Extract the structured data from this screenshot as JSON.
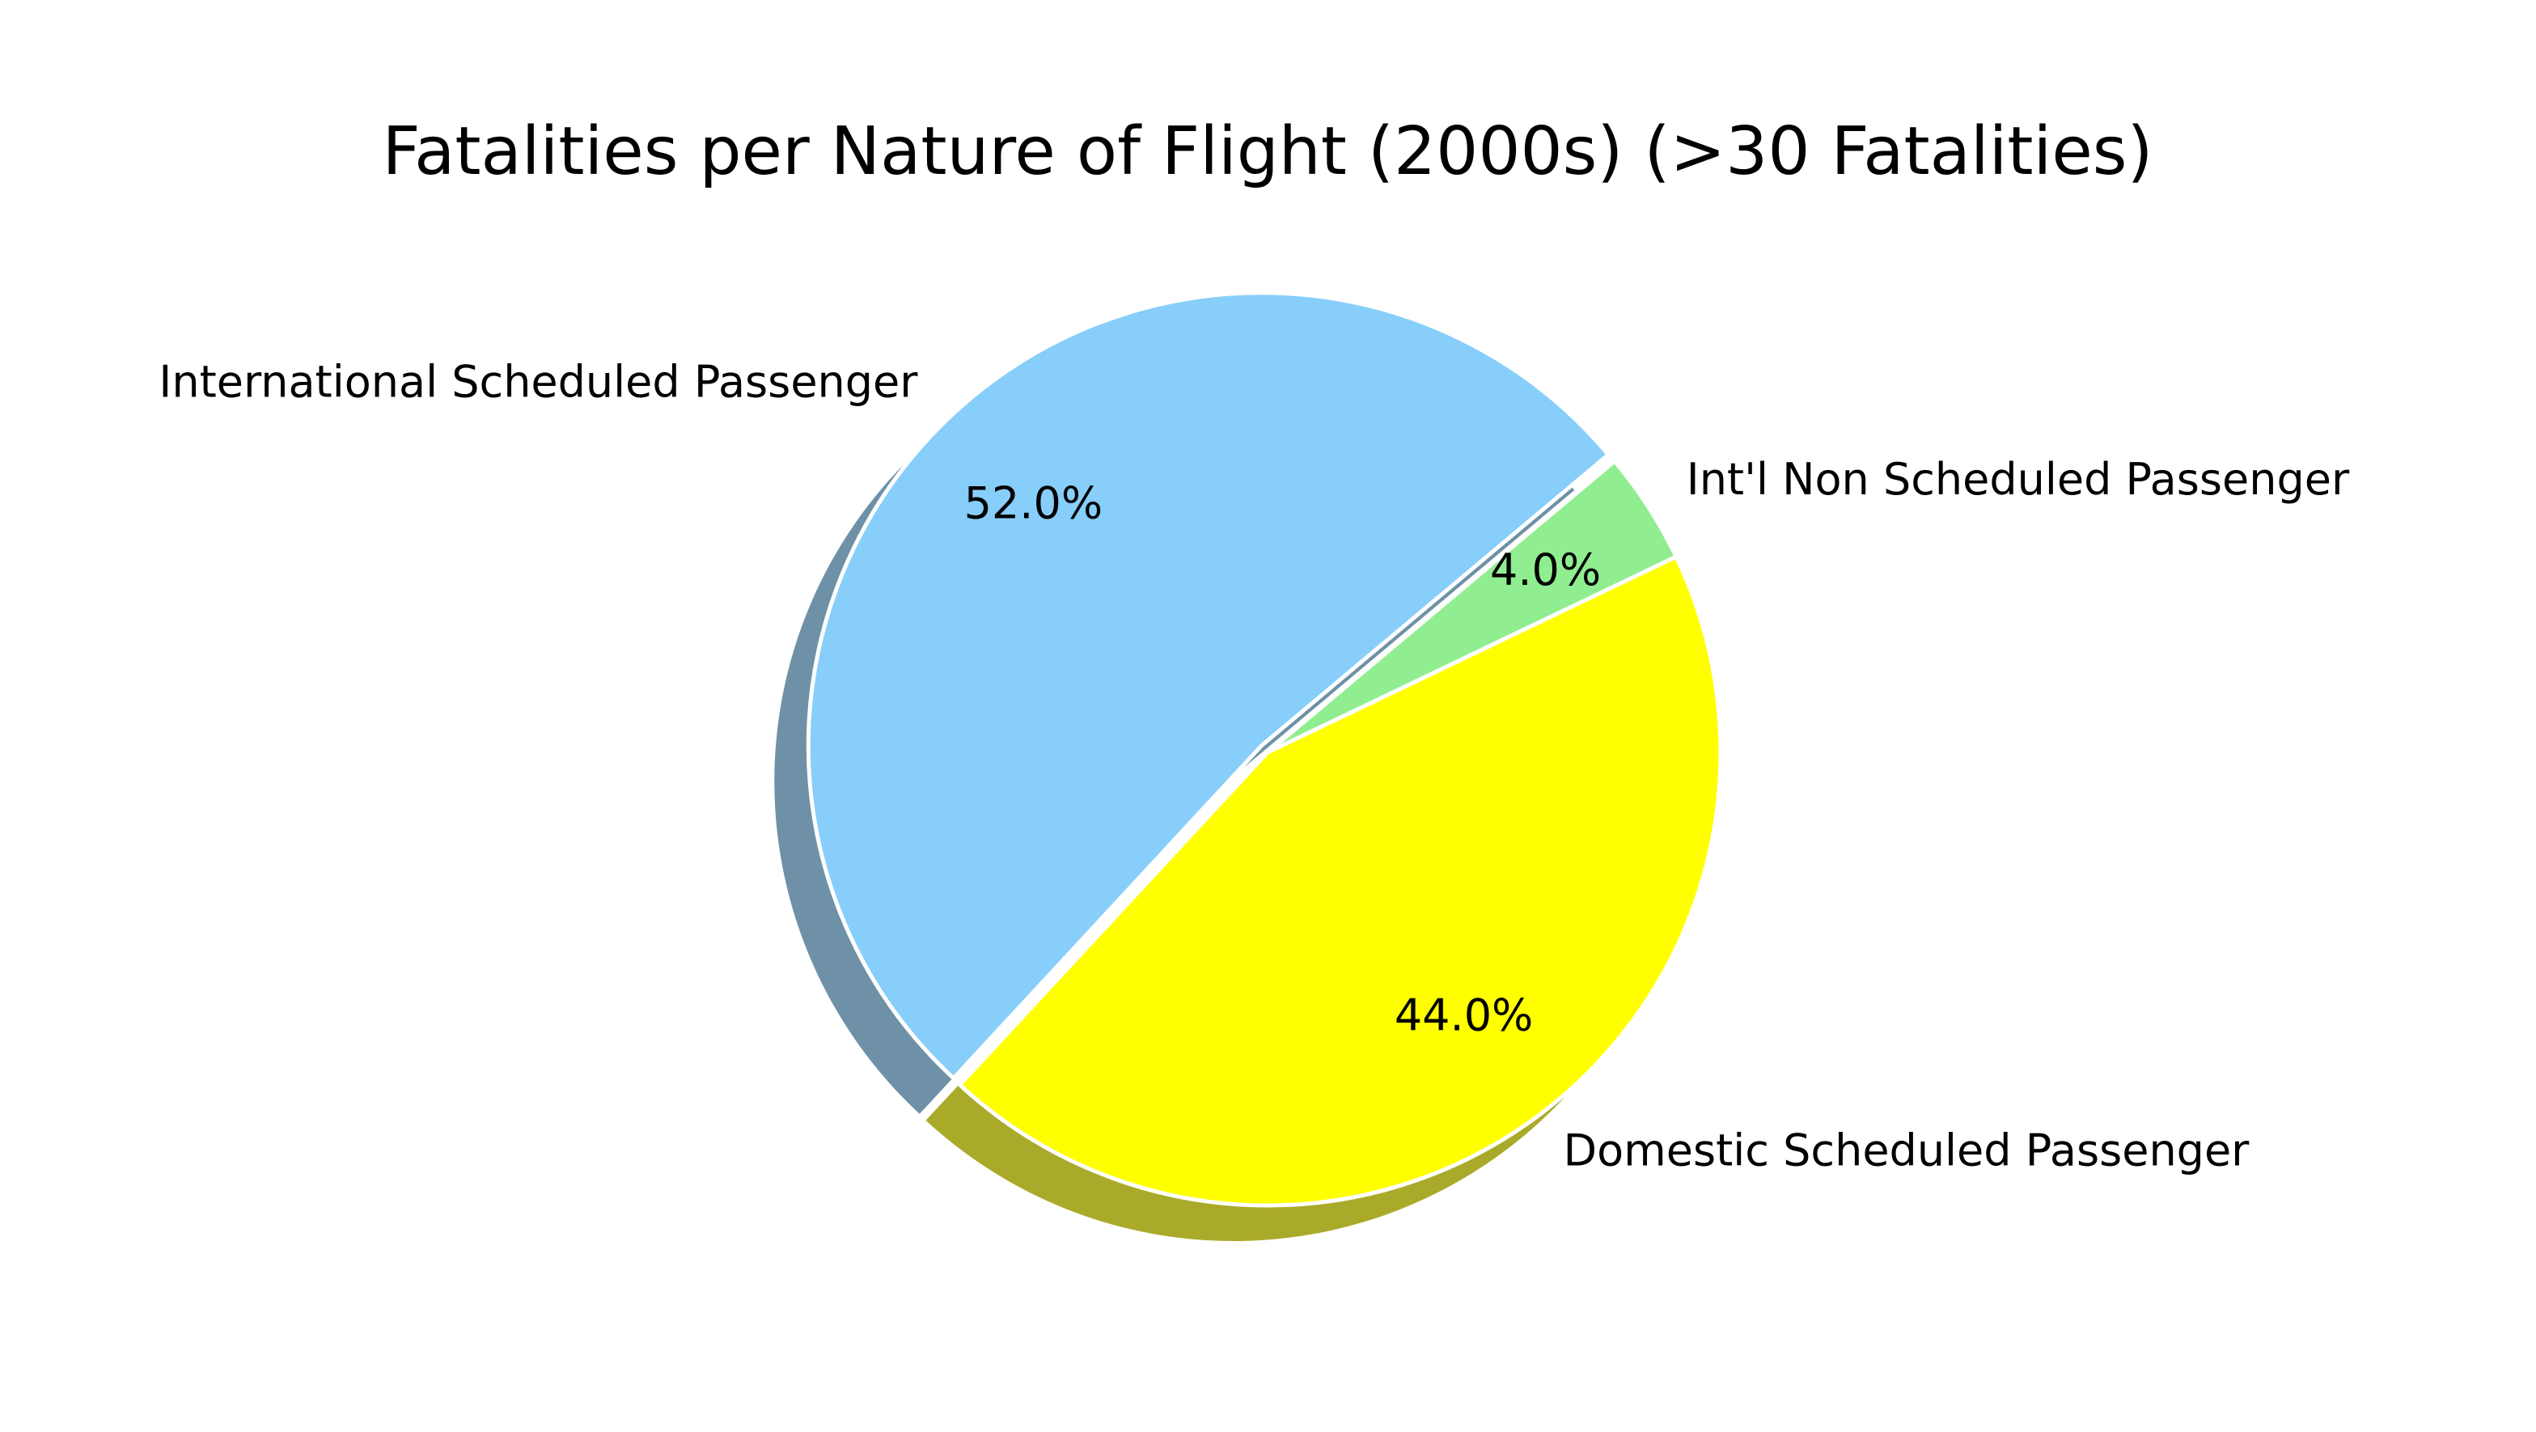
{
  "chart_data": {
    "type": "pie",
    "title": "Fatalities per Nature of Flight (2000s) (>30 Fatalities)",
    "slices": [
      {
        "label": "International Scheduled Passenger",
        "value": 52.0,
        "pct_label": "52.0%",
        "color": "#87CEFA",
        "explode": 0.02
      },
      {
        "label": "Domestic Scheduled Passenger",
        "value": 44.0,
        "pct_label": "44.0%",
        "color": "#FFFF00",
        "explode": 0
      },
      {
        "label": "Int'l Non Scheduled Passenger",
        "value": 4.0,
        "pct_label": "4.0%",
        "color": "#90EE90",
        "explode": 0
      }
    ],
    "start_angle_deg": 40,
    "shadow": true,
    "legend": "none"
  }
}
